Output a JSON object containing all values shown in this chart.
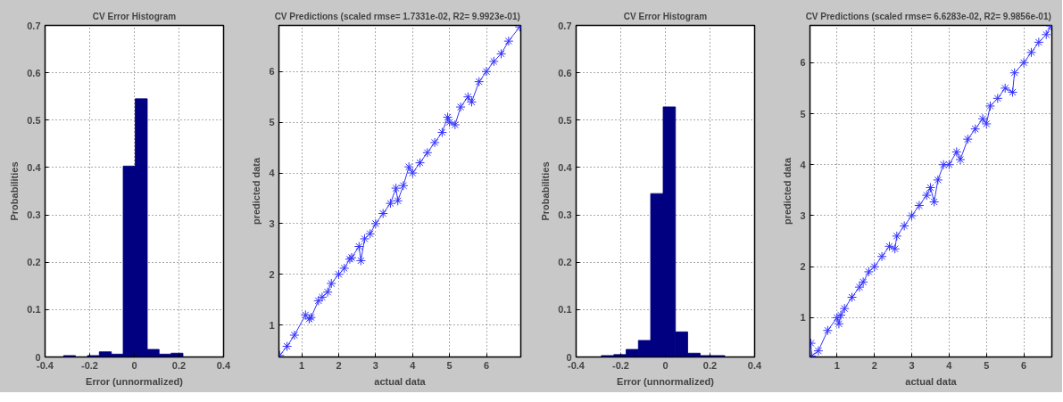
{
  "chart_data": [
    {
      "type": "histogram",
      "title": "CV Error Histogram",
      "xlabel": "Error (unnormalized)",
      "ylabel": "Probabilities",
      "color": "#000080",
      "bins": [
        -0.317,
        -0.264,
        -0.21,
        -0.157,
        -0.103,
        -0.05,
        0.004,
        0.058,
        0.111,
        0.165,
        0.218
      ],
      "values": [
        0.003,
        0,
        0.003,
        0.011,
        0.006,
        0.403,
        0.545,
        0.016,
        0.006,
        0.008
      ],
      "xlim": [
        -0.4,
        0.4
      ],
      "xticks": [
        -0.4,
        -0.2,
        0,
        0.2,
        0.4
      ],
      "ylim": [
        0,
        0.7
      ],
      "yticks": [
        0,
        0.1,
        0.2,
        0.3,
        0.4,
        0.5,
        0.6,
        0.7
      ],
      "grid": true
    },
    {
      "type": "line",
      "title": "CV Predictions (scaled rmse=  1.7331e-02, R2=  9.9923e-01)",
      "xlabel": "actual data",
      "ylabel": "predicted data",
      "marker": "cross",
      "line_style": "solid",
      "series": [
        {
          "color": "#3333ff",
          "x": [
            0.4,
            0.6,
            0.8,
            1.1,
            1.2,
            1.25,
            1.45,
            1.55,
            1.7,
            1.8,
            2.0,
            2.15,
            2.3,
            2.35,
            2.55,
            2.6,
            2.7,
            2.85,
            3.0,
            3.2,
            3.4,
            3.55,
            3.6,
            3.75,
            3.9,
            4.0,
            4.2,
            4.4,
            4.6,
            4.8,
            4.95,
            5.0,
            5.15,
            5.3,
            5.5,
            5.6,
            5.8,
            6.0,
            6.2,
            6.4,
            6.6,
            6.9
          ],
          "values": [
            0.4,
            0.58,
            0.8,
            1.2,
            1.12,
            1.15,
            1.48,
            1.55,
            1.65,
            1.82,
            2.0,
            2.12,
            2.3,
            2.33,
            2.55,
            2.27,
            2.7,
            2.8,
            3.0,
            3.2,
            3.4,
            3.7,
            3.45,
            3.75,
            4.12,
            4.0,
            4.2,
            4.4,
            4.6,
            4.8,
            5.1,
            5.0,
            4.95,
            5.3,
            5.5,
            5.4,
            5.8,
            6.0,
            6.2,
            6.35,
            6.6,
            6.88
          ]
        }
      ],
      "xlim": [
        0.38,
        6.93
      ],
      "xticks": [
        1,
        2,
        3,
        4,
        5,
        6
      ],
      "ylim": [
        0.37,
        6.91
      ],
      "yticks": [
        1,
        2,
        3,
        4,
        5,
        6
      ],
      "grid": true
    },
    {
      "type": "histogram",
      "title": "CV Error Histogram",
      "xlabel": "Error (unnormalized)",
      "ylabel": "Probabilities",
      "color": "#000080",
      "bins": [
        -0.287,
        -0.231,
        -0.176,
        -0.121,
        -0.066,
        -0.01,
        0.045,
        0.1,
        0.156,
        0.211,
        0.266
      ],
      "values": [
        0.003,
        0.005,
        0.016,
        0.035,
        0.345,
        0.528,
        0.053,
        0.008,
        0.003,
        0.003
      ],
      "xlim": [
        -0.4,
        0.4
      ],
      "xticks": [
        -0.4,
        -0.2,
        0,
        0.2,
        0.4
      ],
      "ylim": [
        0,
        0.7
      ],
      "yticks": [
        0,
        0.1,
        0.2,
        0.3,
        0.4,
        0.5,
        0.6,
        0.7
      ],
      "grid": true
    },
    {
      "type": "line",
      "title": "CV Predictions (scaled rmse=  6.6283e-02, R2=  9.9856e-01)",
      "xlabel": "actual data",
      "ylabel": "predicted data",
      "marker": "cross",
      "line_style": "solid",
      "series": [
        {
          "color": "#3333ff",
          "x": [
            0.3,
            0.32,
            0.5,
            0.75,
            1.0,
            1.05,
            1.1,
            1.2,
            1.4,
            1.6,
            1.7,
            1.85,
            2.0,
            2.2,
            2.4,
            2.55,
            2.6,
            2.8,
            3.0,
            3.2,
            3.4,
            3.5,
            3.6,
            3.7,
            3.85,
            4.0,
            4.2,
            4.3,
            4.5,
            4.7,
            4.9,
            5.0,
            5.1,
            5.3,
            5.5,
            5.7,
            5.75,
            6.0,
            6.2,
            6.4,
            6.6,
            6.72
          ],
          "values": [
            0.5,
            0.25,
            0.35,
            0.75,
            1.0,
            0.88,
            1.05,
            1.18,
            1.4,
            1.6,
            1.7,
            1.9,
            2.0,
            2.2,
            2.4,
            2.35,
            2.6,
            2.8,
            3.0,
            3.2,
            3.4,
            3.55,
            3.27,
            3.7,
            4.0,
            4.0,
            4.25,
            4.1,
            4.5,
            4.7,
            4.9,
            4.8,
            5.15,
            5.3,
            5.5,
            5.42,
            5.8,
            6.0,
            6.2,
            6.4,
            6.55,
            6.72
          ]
        }
      ],
      "xlim": [
        0.275,
        6.75
      ],
      "xticks": [
        1,
        2,
        3,
        4,
        5,
        6
      ],
      "ylim": [
        0.23,
        6.73
      ],
      "yticks": [
        1,
        2,
        3,
        4,
        5,
        6
      ],
      "grid": true
    }
  ]
}
